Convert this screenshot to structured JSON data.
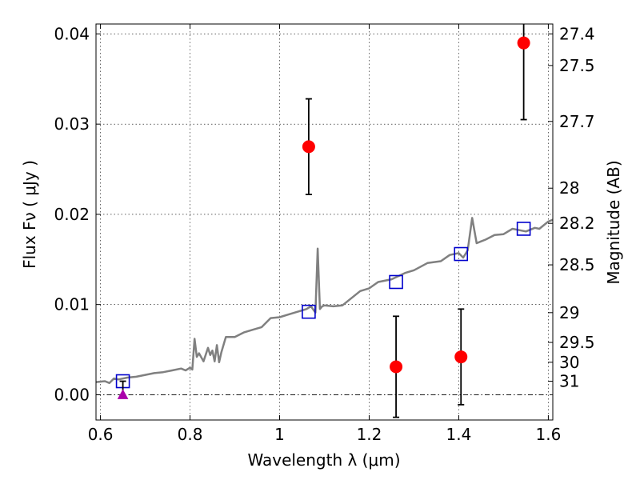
{
  "chart_data": {
    "type": "scatter",
    "xlabel": "Wavelength  λ (μm)",
    "ylabel": "Flux  Fν  ( μJy )",
    "ylabel_right": "Magnitude (AB)",
    "xlim": [
      0.59,
      1.61
    ],
    "ylim": [
      -0.0028,
      0.0411
    ],
    "x_ticks": [
      {
        "value": 0.6,
        "label": "0.6"
      },
      {
        "value": 0.8,
        "label": "0.8"
      },
      {
        "value": 1.0,
        "label": "1"
      },
      {
        "value": 1.2,
        "label": "1.2"
      },
      {
        "value": 1.4,
        "label": "1.4"
      },
      {
        "value": 1.6,
        "label": "1.6"
      }
    ],
    "y_ticks": [
      {
        "value": 0.0,
        "label": "0.00"
      },
      {
        "value": 0.01,
        "label": "0.01"
      },
      {
        "value": 0.02,
        "label": "0.02"
      },
      {
        "value": 0.03,
        "label": "0.03"
      },
      {
        "value": 0.04,
        "label": "0.04"
      }
    ],
    "right_ticks": [
      {
        "flux": 0.04,
        "label": "27.4"
      },
      {
        "flux": 0.0365,
        "label": "27.5"
      },
      {
        "flux": 0.0303,
        "label": "27.7"
      },
      {
        "flux": 0.0229,
        "label": "28"
      },
      {
        "flux": 0.019,
        "label": "28.2"
      },
      {
        "flux": 0.0144,
        "label": "28.5"
      },
      {
        "flux": 0.0091,
        "label": "29"
      },
      {
        "flux": 0.0058,
        "label": "29.5"
      },
      {
        "flux": 0.0036,
        "label": "30"
      },
      {
        "flux": 0.0015,
        "label": "31"
      }
    ],
    "grid": true,
    "zero_line": true,
    "colors": {
      "measured": "#ff0000",
      "model": "#0000cc",
      "limit": "#aa00aa",
      "spectrum": "#808080",
      "errorbar": "#000000"
    },
    "measured_points": [
      {
        "x": 1.065,
        "y": 0.0275,
        "err": 0.0053
      },
      {
        "x": 1.26,
        "y": 0.0031,
        "err": 0.0056
      },
      {
        "x": 1.405,
        "y": 0.0042,
        "err": 0.0053
      },
      {
        "x": 1.545,
        "y": 0.039,
        "err": 0.0085
      }
    ],
    "model_points": [
      {
        "x": 0.65,
        "y": 0.0015
      },
      {
        "x": 1.065,
        "y": 0.0092
      },
      {
        "x": 1.26,
        "y": 0.0125
      },
      {
        "x": 1.405,
        "y": 0.0156
      },
      {
        "x": 1.545,
        "y": 0.0184
      }
    ],
    "limit_points": [
      {
        "x": 0.65,
        "y": 0.0,
        "err": 0.0015
      }
    ],
    "spectrum": {
      "x": [
        0.59,
        0.61,
        0.62,
        0.63,
        0.64,
        0.66,
        0.68,
        0.7,
        0.72,
        0.74,
        0.76,
        0.78,
        0.79,
        0.8,
        0.805,
        0.81,
        0.815,
        0.82,
        0.83,
        0.84,
        0.845,
        0.85,
        0.855,
        0.86,
        0.865,
        0.87,
        0.88,
        0.9,
        0.92,
        0.94,
        0.96,
        0.98,
        1.0,
        1.02,
        1.04,
        1.06,
        1.07,
        1.08,
        1.085,
        1.09,
        1.095,
        1.1,
        1.12,
        1.14,
        1.16,
        1.18,
        1.2,
        1.22,
        1.25,
        1.28,
        1.3,
        1.33,
        1.36,
        1.38,
        1.4,
        1.41,
        1.42,
        1.43,
        1.44,
        1.45,
        1.46,
        1.48,
        1.5,
        1.52,
        1.55,
        1.57,
        1.58,
        1.6,
        1.61
      ],
      "y": [
        0.0014,
        0.0015,
        0.0013,
        0.0018,
        0.0017,
        0.0019,
        0.002,
        0.0022,
        0.0024,
        0.0025,
        0.0027,
        0.0029,
        0.0027,
        0.003,
        0.0028,
        0.0062,
        0.0042,
        0.0046,
        0.0037,
        0.0052,
        0.0044,
        0.0049,
        0.0037,
        0.0055,
        0.0036,
        0.0047,
        0.0064,
        0.0064,
        0.0069,
        0.0072,
        0.0075,
        0.0085,
        0.0086,
        0.0089,
        0.0092,
        0.0095,
        0.0098,
        0.0091,
        0.0162,
        0.0095,
        0.0098,
        0.0099,
        0.0098,
        0.0099,
        0.0107,
        0.0115,
        0.0118,
        0.0125,
        0.0128,
        0.0135,
        0.0138,
        0.0146,
        0.0148,
        0.0155,
        0.0157,
        0.0152,
        0.016,
        0.0196,
        0.0168,
        0.017,
        0.0172,
        0.0177,
        0.0178,
        0.0184,
        0.0181,
        0.0185,
        0.0184,
        0.0192,
        0.0194
      ]
    }
  }
}
